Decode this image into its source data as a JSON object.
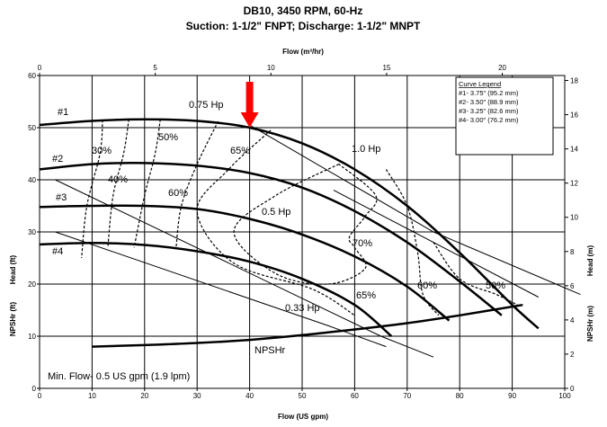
{
  "chart_data": {
    "type": "line",
    "title": "DB10, 3450 RPM, 60-Hz",
    "subtitle": "Suction: 1-1/2\" FNPT; Discharge: 1-1/2\" MNPT",
    "xlabel": "Flow (US gpm)",
    "x2label": "Flow (m³/hr)",
    "ylabel_left": [
      "Head (ft)",
      "NPSHr (ft)"
    ],
    "ylabel_right": [
      "Head (m)",
      "NPSHr (m)"
    ],
    "xlim": [
      0,
      100
    ],
    "ylim": [
      0,
      60
    ],
    "x2lim": [
      0,
      22.7
    ],
    "y2lim": [
      0,
      18.29
    ],
    "x_ticks": [
      "0",
      "10",
      "20",
      "30",
      "40",
      "50",
      "60",
      "70",
      "80",
      "90",
      "100"
    ],
    "y_ticks": [
      "0",
      "10",
      "20",
      "30",
      "40",
      "50",
      "60"
    ],
    "x2_ticks": [
      "0",
      "5",
      "10",
      "15",
      "20"
    ],
    "y2_ticks": [
      "0",
      "2",
      "4",
      "6",
      "8",
      "10",
      "12",
      "14",
      "16",
      "18"
    ],
    "grid": true,
    "series": [
      {
        "name": "#1",
        "points": [
          [
            0,
            50.5
          ],
          [
            10,
            51.3
          ],
          [
            20,
            51.6
          ],
          [
            30,
            51.3
          ],
          [
            40,
            50
          ],
          [
            50,
            47
          ],
          [
            60,
            42
          ],
          [
            70,
            35
          ],
          [
            80,
            26
          ],
          [
            90,
            16
          ],
          [
            95,
            11.5
          ]
        ]
      },
      {
        "name": "#2",
        "points": [
          [
            0,
            42
          ],
          [
            10,
            43
          ],
          [
            20,
            43.2
          ],
          [
            30,
            42.7
          ],
          [
            40,
            41.3
          ],
          [
            50,
            38.5
          ],
          [
            60,
            34
          ],
          [
            70,
            28
          ],
          [
            80,
            20.5
          ],
          [
            88,
            14
          ]
        ]
      },
      {
        "name": "#3",
        "points": [
          [
            0,
            34.8
          ],
          [
            10,
            35
          ],
          [
            20,
            35
          ],
          [
            30,
            34.4
          ],
          [
            40,
            32.5
          ],
          [
            50,
            29.5
          ],
          [
            60,
            25.3
          ],
          [
            70,
            19.5
          ],
          [
            78,
            13
          ]
        ]
      },
      {
        "name": "#4",
        "points": [
          [
            0,
            27.6
          ],
          [
            10,
            27.9
          ],
          [
            20,
            27.5
          ],
          [
            30,
            26.3
          ],
          [
            40,
            24.3
          ],
          [
            50,
            21
          ],
          [
            60,
            16
          ],
          [
            67,
            10
          ]
        ]
      },
      {
        "name": "NPSHr",
        "points": [
          [
            10,
            8
          ],
          [
            20,
            8.3
          ],
          [
            30,
            8.7
          ],
          [
            40,
            9.3
          ],
          [
            50,
            10.2
          ],
          [
            60,
            11.3
          ],
          [
            70,
            12.5
          ],
          [
            80,
            14
          ],
          [
            92,
            16
          ]
        ]
      }
    ],
    "power_lines": [
      {
        "label": "0.75 Hp",
        "points": [
          [
            40,
            50.5
          ],
          [
            75,
            30
          ],
          [
            103,
            18
          ]
        ]
      },
      {
        "label": "1.0 Hp",
        "points": [
          [
            56,
            38
          ],
          [
            95,
            17.5
          ]
        ]
      },
      {
        "label": "0.5 Hp",
        "points": [
          [
            3,
            40
          ],
          [
            65,
            10
          ],
          [
            75,
            6
          ]
        ]
      },
      {
        "label": "0.33 Hp",
        "points": [
          [
            3,
            30
          ],
          [
            55,
            12
          ],
          [
            66,
            8
          ]
        ]
      }
    ],
    "efficiency_curves": [
      {
        "label": "30%",
        "points": [
          [
            12,
            51.5
          ],
          [
            11.5,
            45
          ],
          [
            9,
            35
          ],
          [
            8,
            25
          ]
        ]
      },
      {
        "label": "40%",
        "points": [
          [
            17,
            51.6
          ],
          [
            16,
            45
          ],
          [
            14,
            37
          ],
          [
            13,
            27
          ]
        ]
      },
      {
        "label": "50%",
        "points": [
          [
            23,
            51.6
          ],
          [
            22,
            45
          ],
          [
            20,
            37
          ],
          [
            18,
            27
          ]
        ]
      },
      {
        "label": "60%",
        "points": [
          [
            34,
            51.2
          ],
          [
            30,
            43
          ],
          [
            27,
            35
          ],
          [
            26,
            27
          ]
        ]
      },
      {
        "label": "65%",
        "points": [
          [
            44,
            49.5
          ],
          [
            36,
            42
          ],
          [
            30,
            34
          ],
          [
            37,
            24
          ],
          [
            52,
            19
          ],
          [
            60,
            14
          ]
        ]
      },
      {
        "label": "70%",
        "points": [
          [
            57,
            43
          ],
          [
            45,
            37
          ],
          [
            37,
            30
          ],
          [
            45,
            22
          ],
          [
            55,
            20
          ],
          [
            62,
            23
          ],
          [
            60,
            27
          ],
          [
            59,
            29
          ],
          [
            62,
            33
          ],
          [
            64,
            37
          ],
          [
            57,
            43
          ]
        ]
      },
      {
        "label": "60%",
        "points": [
          [
            66,
            42
          ],
          [
            70,
            35
          ],
          [
            72,
            26
          ],
          [
            73,
            18
          ],
          [
            76,
            14
          ]
        ]
      },
      {
        "label": "50%",
        "points": [
          [
            75,
            28
          ],
          [
            80,
            21
          ],
          [
            87,
            18
          ],
          [
            91,
            16
          ]
        ]
      }
    ],
    "annotations": {
      "min_flow": "Min. Flow- 0.5 US gpm (1.9 lpm)",
      "npshr_label": "NPSHr",
      "bep_arrow_flow": 40,
      "labels": {
        "h075": "0.75 Hp",
        "h10": "1.0 Hp",
        "h05": "0.5 Hp",
        "h033": "0.33 Hp",
        "e30": "30%",
        "e40": "40%",
        "e50a": "50%",
        "e60a": "60%",
        "e65a": "65%",
        "e70": "70%",
        "e65b": "65%",
        "e60b": "60%",
        "e50b": "50%",
        "c1": "#1",
        "c2": "#2",
        "c3": "#3",
        "c4": "#4"
      }
    },
    "legend": {
      "title": "Curve Legend",
      "entries": [
        "#1- 3.75\" (95.2 mm)",
        "#2- 3.50\" (88.9 mm)",
        "#3- 3.25\" (82.6 mm)",
        "#4- 3.00\" (76.2 mm)"
      ],
      "placement": "top-right"
    },
    "colors": {
      "curve": "#000000",
      "arrow": "#ff0000",
      "grid": "#000000"
    }
  }
}
